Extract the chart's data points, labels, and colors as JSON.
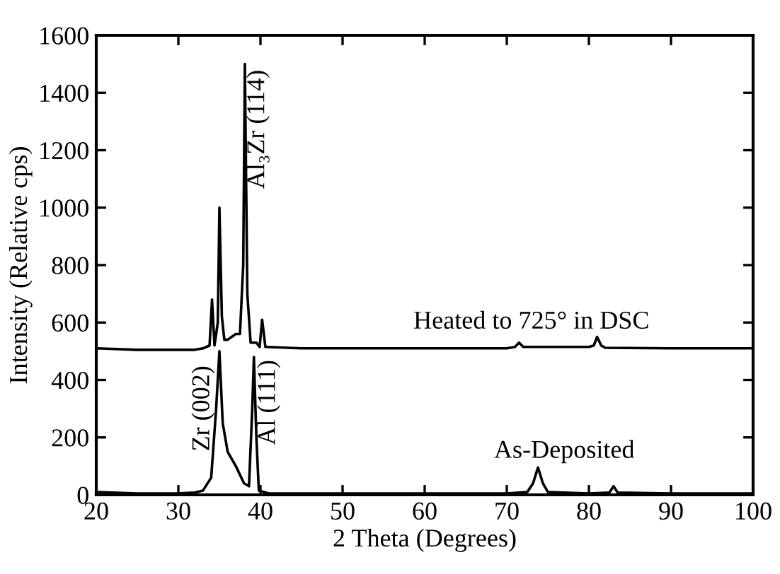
{
  "chart_data": {
    "type": "line",
    "xlabel": "2 Theta (Degrees)",
    "ylabel": "Intensity (Relative cps)",
    "xlim": [
      20,
      100
    ],
    "ylim": [
      0,
      1600
    ],
    "xticks": [
      20,
      30,
      40,
      50,
      60,
      70,
      80,
      90,
      100
    ],
    "yticks": [
      0,
      200,
      400,
      600,
      800,
      1000,
      1200,
      1400,
      1600
    ],
    "grid": false,
    "marker": "none",
    "line_style": "solid",
    "series": [
      {
        "color": "#000000",
        "x": [
          20,
          25,
          30,
          32,
          33,
          33.8,
          34.1,
          34.4,
          34.8,
          35,
          35.3,
          35.6,
          36,
          36.5,
          37,
          37.5,
          37.9,
          38.1,
          38.4,
          38.8,
          39.5,
          39.9,
          40.2,
          40.6,
          45,
          60,
          70,
          71,
          71.5,
          72,
          80,
          80.6,
          81,
          81.5,
          82,
          90,
          100
        ],
        "values": [
          510,
          505,
          505,
          505,
          510,
          520,
          680,
          520,
          600,
          1000,
          620,
          540,
          540,
          550,
          560,
          560,
          800,
          1500,
          700,
          530,
          530,
          515,
          610,
          515,
          510,
          510,
          510,
          515,
          530,
          515,
          515,
          520,
          550,
          520,
          512,
          510,
          510
        ]
      },
      {
        "color": "#000000",
        "x": [
          20,
          25,
          30,
          32,
          33,
          34,
          34.6,
          35,
          35.4,
          36,
          37,
          38,
          38.6,
          39,
          39.2,
          39.5,
          39.8,
          41,
          50,
          60,
          70,
          72.5,
          73.2,
          73.8,
          74.4,
          75,
          80,
          82.5,
          83,
          83.5,
          90,
          100
        ],
        "values": [
          10,
          5,
          5,
          8,
          15,
          60,
          300,
          500,
          250,
          150,
          100,
          40,
          30,
          300,
          480,
          200,
          15,
          5,
          5,
          5,
          5,
          10,
          40,
          95,
          40,
          10,
          5,
          8,
          30,
          8,
          5,
          5
        ]
      }
    ],
    "annotations": [
      {
        "text": "Heated to 725° in DSC",
        "x": 70,
        "y": 530
      },
      {
        "text": "As-Deposited",
        "x": 74,
        "y": 95
      },
      {
        "text": "Zr (002)",
        "x": 35,
        "y": 500
      },
      {
        "text": "Al (111)",
        "x": 39.2,
        "y": 480
      },
      {
        "text": "Al₃Zr (114)",
        "x": 38.1,
        "y": 1500
      }
    ]
  }
}
